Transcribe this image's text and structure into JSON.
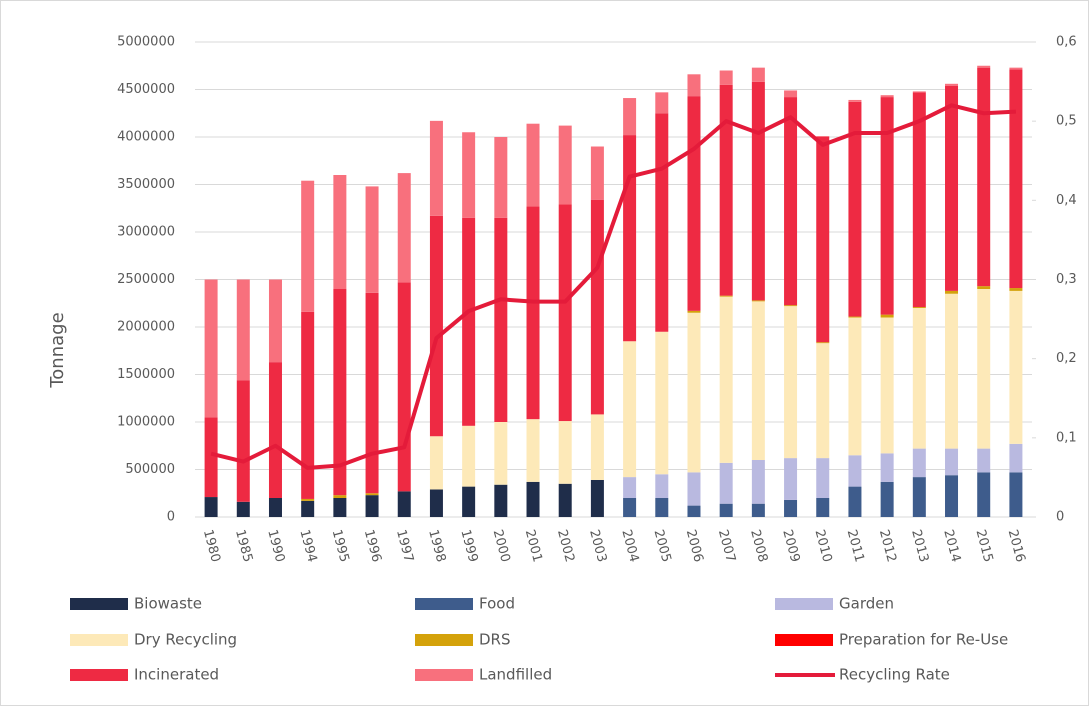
{
  "chart_data": {
    "type": "bar",
    "stacked": true,
    "y_label": "Tonnage",
    "categories": [
      "1980",
      "1985",
      "1990",
      "1994",
      "1995",
      "1996",
      "1997",
      "1998",
      "1999",
      "2000",
      "2001",
      "2002",
      "2003",
      "2004",
      "2005",
      "2006",
      "2007",
      "2008",
      "2009",
      "2010",
      "2011",
      "2012",
      "2013",
      "2014",
      "2015",
      "2016"
    ],
    "ylim": [
      0,
      5000000
    ],
    "yticks": [
      0,
      500000,
      1000000,
      1500000,
      2000000,
      2500000,
      3000000,
      3500000,
      4000000,
      4500000,
      5000000
    ],
    "y2lim": [
      0,
      0.6
    ],
    "y2ticks": [
      0,
      {
        "value": 0.1,
        "label": "0,1"
      },
      {
        "value": 0.2,
        "label": "0,2"
      },
      {
        "value": 0.3,
        "label": "0,3"
      },
      {
        "value": 0.4,
        "label": "0,4"
      },
      {
        "value": 0.5,
        "label": "0,5"
      },
      {
        "value": 0.6,
        "label": "0,6"
      }
    ],
    "grid": true,
    "series": [
      {
        "name": "Biowaste",
        "color": "#1f2d4a",
        "values": [
          210000,
          160000,
          200000,
          170000,
          200000,
          230000,
          270000,
          290000,
          320000,
          340000,
          370000,
          350000,
          390000,
          0,
          0,
          0,
          0,
          0,
          0,
          0,
          0,
          0,
          0,
          0,
          0,
          0
        ]
      },
      {
        "name": "Food",
        "color": "#3e5c8c",
        "values": [
          0,
          0,
          0,
          0,
          0,
          0,
          0,
          0,
          0,
          0,
          0,
          0,
          0,
          200000,
          200000,
          120000,
          140000,
          140000,
          180000,
          200000,
          320000,
          370000,
          420000,
          440000,
          470000,
          470000
        ]
      },
      {
        "name": "Garden",
        "color": "#b9b9e0",
        "values": [
          0,
          0,
          0,
          0,
          0,
          0,
          0,
          0,
          0,
          0,
          0,
          0,
          0,
          220000,
          250000,
          350000,
          430000,
          460000,
          440000,
          420000,
          330000,
          300000,
          300000,
          280000,
          250000,
          300000
        ]
      },
      {
        "name": "Dry Recycling",
        "color": "#fde9b8",
        "values": [
          0,
          0,
          0,
          0,
          0,
          0,
          0,
          560000,
          640000,
          660000,
          660000,
          660000,
          690000,
          1430000,
          1500000,
          1680000,
          1750000,
          1670000,
          1600000,
          1210000,
          1450000,
          1430000,
          1480000,
          1630000,
          1680000,
          1610000
        ]
      },
      {
        "name": "DRS",
        "color": "#d4a20b",
        "values": [
          0,
          0,
          0,
          20000,
          30000,
          20000,
          0,
          0,
          0,
          0,
          0,
          0,
          0,
          0,
          0,
          20000,
          10000,
          10000,
          10000,
          10000,
          10000,
          30000,
          10000,
          30000,
          30000,
          30000
        ]
      },
      {
        "name": "Preparation for Re-Use",
        "color": "#ff0000",
        "values": [
          0,
          0,
          0,
          0,
          0,
          0,
          0,
          0,
          0,
          0,
          0,
          0,
          0,
          0,
          0,
          0,
          0,
          0,
          0,
          0,
          0,
          0,
          0,
          0,
          0,
          0
        ]
      },
      {
        "name": "Incinerated",
        "color": "#ee2a43",
        "values": [
          840000,
          1280000,
          1430000,
          1970000,
          2170000,
          2110000,
          2200000,
          2320000,
          2190000,
          2150000,
          2240000,
          2280000,
          2260000,
          2170000,
          2300000,
          2260000,
          2220000,
          2300000,
          2190000,
          2160000,
          2260000,
          2290000,
          2260000,
          2160000,
          2300000,
          2300000
        ]
      },
      {
        "name": "Landfilled",
        "color": "#f8707d",
        "values": [
          1450000,
          1060000,
          870000,
          1380000,
          1200000,
          1120000,
          1150000,
          1000000,
          900000,
          850000,
          870000,
          830000,
          560000,
          390000,
          220000,
          230000,
          150000,
          150000,
          70000,
          10000,
          20000,
          20000,
          10000,
          20000,
          20000,
          20000
        ]
      },
      {
        "name": "Recycling Rate",
        "type": "line",
        "axis": "y2",
        "color": "#e41b3a",
        "values": [
          0.08,
          0.07,
          0.09,
          0.062,
          0.065,
          0.08,
          0.088,
          0.226,
          0.26,
          0.275,
          0.272,
          0.272,
          0.315,
          0.43,
          0.44,
          0.465,
          0.5,
          0.485,
          0.505,
          0.47,
          0.485,
          0.485,
          0.5,
          0.52,
          0.51,
          0.512
        ]
      }
    ]
  }
}
